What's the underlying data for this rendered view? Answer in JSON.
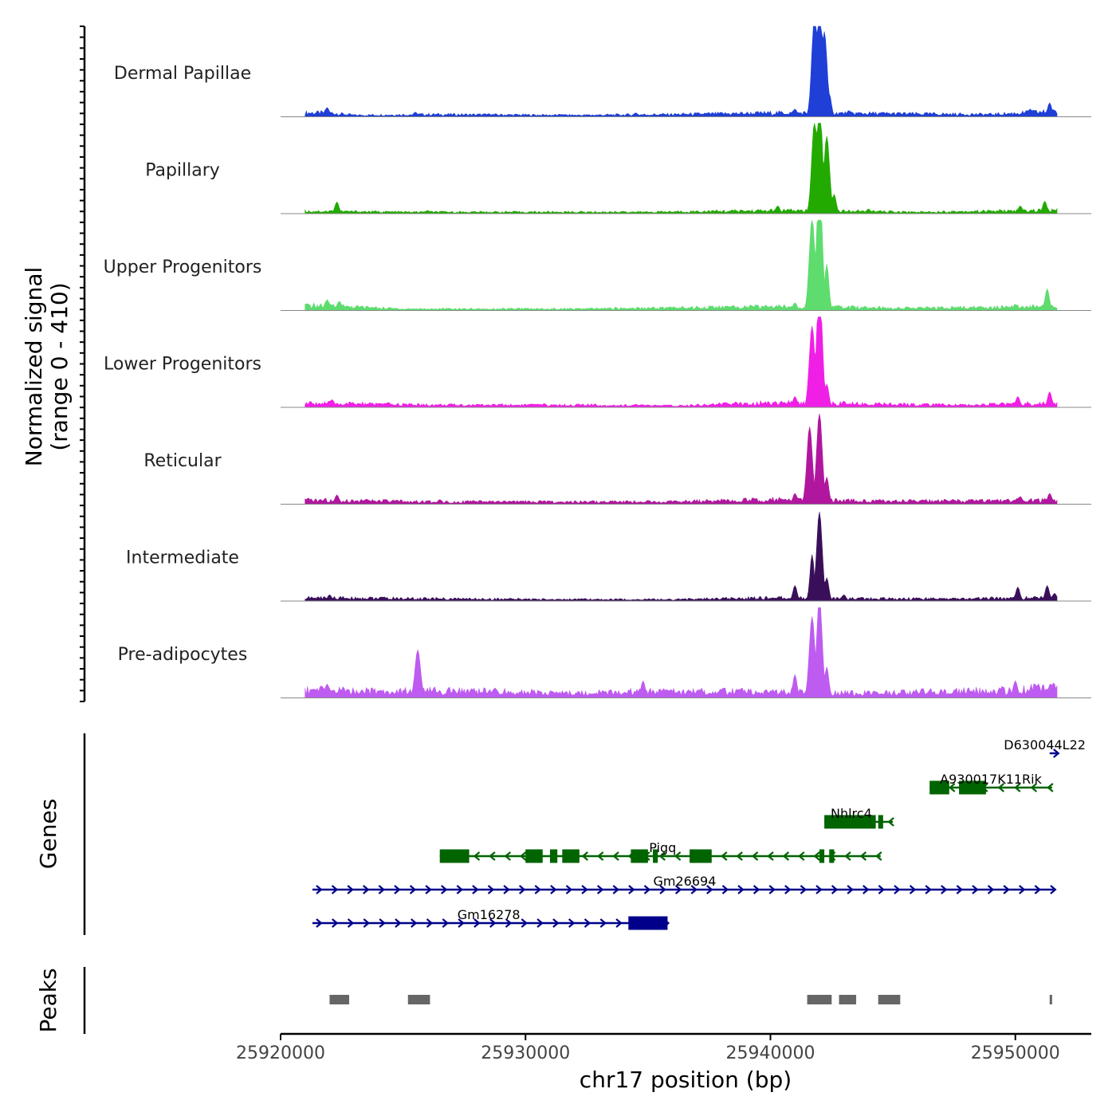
{
  "chart_data": {
    "type": "coverage-track",
    "chromosome": "chr17",
    "x_range": [
      25920000,
      25953100
    ],
    "signal_range": [
      0,
      410
    ],
    "ylabel_line1": "Normalized signal",
    "ylabel_line2": "(range 0 - 410)",
    "xlabel": "chr17 position (bp)",
    "x_ticks": [
      {
        "value": 25920000,
        "label": "25920000"
      },
      {
        "value": 25930000,
        "label": "25930000"
      },
      {
        "value": 25940000,
        "label": "25940000"
      },
      {
        "value": 25950000,
        "label": "25950000"
      }
    ],
    "tracks": [
      {
        "name": "Dermal Papillae",
        "color": "#1F3FD6",
        "baseline": [
          [
            25922000,
            5
          ],
          [
            25923000,
            2
          ],
          [
            25926000,
            3
          ],
          [
            25932000,
            2
          ],
          [
            25936000,
            3
          ],
          [
            25940500,
            5
          ],
          [
            25949000,
            3
          ],
          [
            25951000,
            6
          ]
        ],
        "peaks": [
          [
            25921900,
            12
          ],
          [
            25925500,
            6
          ],
          [
            25928500,
            4
          ],
          [
            25931500,
            3
          ],
          [
            25934500,
            5
          ],
          [
            25938000,
            4
          ],
          [
            25941000,
            10
          ],
          [
            25941800,
            130
          ],
          [
            25942000,
            158
          ],
          [
            25942200,
            110
          ],
          [
            25942400,
            30
          ],
          [
            25943200,
            8
          ],
          [
            25950600,
            10
          ],
          [
            25951400,
            18
          ]
        ]
      },
      {
        "name": "Papillary",
        "color": "#22AA00",
        "baseline": [
          [
            25922000,
            3
          ],
          [
            25925000,
            2
          ],
          [
            25930000,
            2
          ],
          [
            25935000,
            2
          ],
          [
            25940500,
            4
          ],
          [
            25946000,
            2
          ],
          [
            25951000,
            4
          ]
        ],
        "peaks": [
          [
            25922300,
            15
          ],
          [
            25926000,
            4
          ],
          [
            25934000,
            3
          ],
          [
            25940300,
            10
          ],
          [
            25941800,
            120
          ],
          [
            25942000,
            152
          ],
          [
            25942300,
            100
          ],
          [
            25942600,
            25
          ],
          [
            25944000,
            6
          ],
          [
            25950200,
            10
          ],
          [
            25951200,
            16
          ]
        ]
      },
      {
        "name": "Upper Progenitors",
        "color": "#5EDC6E",
        "baseline": [
          [
            25922000,
            6
          ],
          [
            25925000,
            2
          ],
          [
            25932000,
            2
          ],
          [
            25940000,
            5
          ],
          [
            25946000,
            3
          ],
          [
            25951000,
            5
          ]
        ],
        "peaks": [
          [
            25921900,
            14
          ],
          [
            25922400,
            12
          ],
          [
            25930000,
            3
          ],
          [
            25941000,
            10
          ],
          [
            25941700,
            120
          ],
          [
            25942000,
            168
          ],
          [
            25942300,
            60
          ],
          [
            25950000,
            8
          ],
          [
            25951300,
            28
          ]
        ]
      },
      {
        "name": "Lower Progenitors",
        "color": "#F01FE6",
        "baseline": [
          [
            25922000,
            5
          ],
          [
            25926000,
            3
          ],
          [
            25932000,
            3
          ],
          [
            25936000,
            2
          ],
          [
            25940000,
            6
          ],
          [
            25944000,
            4
          ],
          [
            25948000,
            3
          ],
          [
            25951000,
            5
          ]
        ],
        "peaks": [
          [
            25922100,
            10
          ],
          [
            25924000,
            5
          ],
          [
            25929000,
            4
          ],
          [
            25934500,
            4
          ],
          [
            25941000,
            14
          ],
          [
            25941700,
            105
          ],
          [
            25942000,
            160
          ],
          [
            25942300,
            30
          ],
          [
            25943000,
            8
          ],
          [
            25950100,
            14
          ],
          [
            25951400,
            20
          ]
        ]
      },
      {
        "name": "Reticular",
        "color": "#B0179E",
        "baseline": [
          [
            25922000,
            5
          ],
          [
            25926000,
            3
          ],
          [
            25932000,
            3
          ],
          [
            25936000,
            3
          ],
          [
            25940000,
            6
          ],
          [
            25944000,
            4
          ],
          [
            25948000,
            4
          ],
          [
            25951000,
            5
          ]
        ],
        "peaks": [
          [
            25922300,
            12
          ],
          [
            25926500,
            6
          ],
          [
            25931000,
            4
          ],
          [
            25935000,
            5
          ],
          [
            25941000,
            14
          ],
          [
            25941600,
            100
          ],
          [
            25942000,
            118
          ],
          [
            25942300,
            35
          ],
          [
            25950200,
            10
          ],
          [
            25951400,
            14
          ]
        ]
      },
      {
        "name": "Intermediate",
        "color": "#3A0F5A",
        "baseline": [
          [
            25922000,
            4
          ],
          [
            25926000,
            3
          ],
          [
            25932000,
            2
          ],
          [
            25936000,
            2
          ],
          [
            25940000,
            4
          ],
          [
            25944000,
            3
          ],
          [
            25948000,
            3
          ],
          [
            25951000,
            4
          ]
        ],
        "peaks": [
          [
            25922000,
            8
          ],
          [
            25930000,
            3
          ],
          [
            25941000,
            20
          ],
          [
            25941700,
            60
          ],
          [
            25942000,
            115
          ],
          [
            25942300,
            30
          ],
          [
            25943000,
            8
          ],
          [
            25950100,
            18
          ],
          [
            25951300,
            20
          ],
          [
            25951600,
            10
          ]
        ]
      },
      {
        "name": "Pre-adipocytes",
        "color": "#BE5BF0",
        "baseline": [
          [
            25922000,
            10
          ],
          [
            25924000,
            8
          ],
          [
            25926000,
            9
          ],
          [
            25929000,
            8
          ],
          [
            25932000,
            6
          ],
          [
            25935000,
            8
          ],
          [
            25939000,
            8
          ],
          [
            25944000,
            6
          ],
          [
            25947000,
            8
          ],
          [
            25950000,
            10
          ],
          [
            25951000,
            12
          ]
        ],
        "peaks": [
          [
            25921900,
            18
          ],
          [
            25925600,
            62
          ],
          [
            25927800,
            12
          ],
          [
            25934800,
            22
          ],
          [
            25941000,
            30
          ],
          [
            25941700,
            105
          ],
          [
            25942000,
            128
          ],
          [
            25942300,
            40
          ],
          [
            25946200,
            12
          ],
          [
            25950000,
            22
          ],
          [
            25950800,
            18
          ],
          [
            25951500,
            16
          ]
        ]
      }
    ],
    "genes": [
      {
        "name": "D630044L22",
        "strand": "+",
        "start": 25951400,
        "end": 25951700,
        "exons": [],
        "color": "#00008B",
        "label_anchor": 25951200
      },
      {
        "name": "A930017K11Rik",
        "strand": "-",
        "start": 25946500,
        "end": 25951500,
        "exons": [
          [
            25946500,
            25947300
          ],
          [
            25947700,
            25948800
          ]
        ],
        "color": "#006400",
        "label_anchor": 25949000
      },
      {
        "name": "Nhlrc4",
        "strand": "-",
        "start": 25942200,
        "end": 25945000,
        "exons": [
          [
            25942200,
            25944300
          ],
          [
            25944400,
            25944600
          ]
        ],
        "color": "#006400",
        "label_anchor": 25943300
      },
      {
        "name": "Pigq",
        "strand": "-",
        "start": 25926500,
        "end": 25944500,
        "exons": [
          [
            25926500,
            25927700
          ],
          [
            25930000,
            25930700
          ],
          [
            25931000,
            25931300
          ],
          [
            25931500,
            25932200
          ],
          [
            25934300,
            25935000
          ],
          [
            25935200,
            25935400
          ],
          [
            25936700,
            25937600
          ],
          [
            25942000,
            25942200
          ],
          [
            25942400,
            25942600
          ]
        ],
        "color": "#006400",
        "label_anchor": 25935600
      },
      {
        "name": "Gm26694",
        "strand": "+",
        "start": 25921300,
        "end": 25951600,
        "exons": [],
        "color": "#00008B",
        "label_anchor": 25936500
      },
      {
        "name": "Gm16278",
        "strand": "+",
        "start": 25921300,
        "end": 25935800,
        "exons": [
          [
            25934200,
            25935800
          ]
        ],
        "color": "#00008B",
        "label_anchor": 25928500
      }
    ],
    "peaks_track": [
      [
        25922000,
        25922800
      ],
      [
        25925200,
        25926100
      ],
      [
        25941500,
        25942500
      ],
      [
        25942800,
        25943500
      ],
      [
        25944400,
        25945300
      ],
      [
        25951400,
        25951500
      ]
    ],
    "panel_labels": {
      "genes": "Genes",
      "peaks": "Peaks"
    }
  }
}
